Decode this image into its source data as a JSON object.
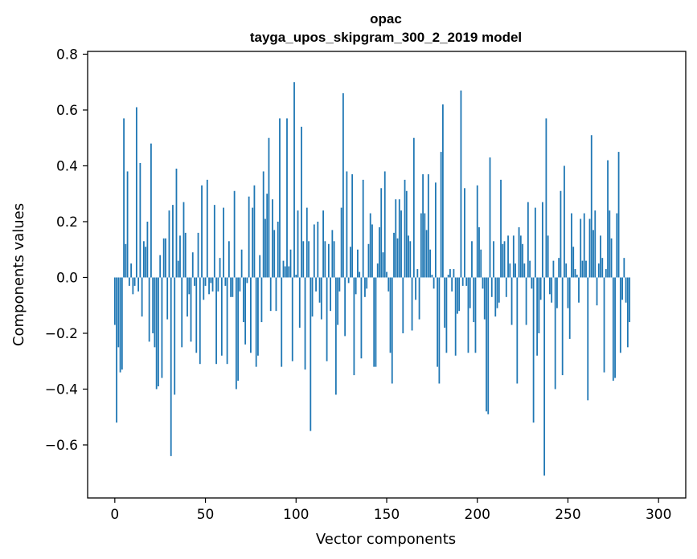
{
  "chart_data": {
    "type": "bar",
    "title": "opac",
    "subtitle": "tayga_upos_skipgram_300_2_2019 model",
    "xlabel": "Vector components",
    "ylabel": "Components values",
    "xlim": [
      -15,
      315
    ],
    "ylim": [
      -0.79,
      0.81
    ],
    "xticks": [
      0,
      50,
      100,
      150,
      200,
      250,
      300
    ],
    "yticks": [
      -0.6,
      -0.4,
      -0.2,
      0.0,
      0.2,
      0.4,
      0.6,
      0.8
    ],
    "xtick_labels": [
      "0",
      "50",
      "100",
      "150",
      "200",
      "250",
      "300"
    ],
    "ytick_labels": [
      "−0.6",
      "−0.4",
      "−0.2",
      "0.0",
      "0.2",
      "0.4",
      "0.6",
      "0.8"
    ],
    "color": "#1f77b4",
    "values": [
      -0.17,
      -0.52,
      -0.25,
      -0.34,
      -0.33,
      0.57,
      0.12,
      0.38,
      -0.03,
      0.05,
      -0.06,
      -0.03,
      0.61,
      -0.05,
      0.41,
      -0.14,
      0.13,
      0.11,
      0.2,
      -0.23,
      0.48,
      -0.2,
      -0.25,
      -0.4,
      -0.39,
      0.08,
      -0.36,
      0.14,
      0.14,
      -0.15,
      0.24,
      -0.64,
      0.26,
      -0.42,
      0.39,
      0.06,
      0.15,
      -0.25,
      0.27,
      0.16,
      -0.14,
      -0.06,
      -0.23,
      0.09,
      -0.03,
      -0.27,
      0.16,
      -0.31,
      0.33,
      -0.08,
      -0.03,
      0.35,
      -0.06,
      -0.02,
      -0.05,
      0.26,
      -0.31,
      -0.05,
      0.07,
      -0.28,
      0.25,
      -0.03,
      -0.31,
      0.13,
      -0.07,
      -0.07,
      0.31,
      -0.4,
      -0.37,
      -0.05,
      0.1,
      -0.16,
      -0.24,
      -0.02,
      0.29,
      -0.27,
      0.25,
      0.33,
      -0.32,
      -0.28,
      0.08,
      -0.16,
      0.38,
      0.21,
      0.3,
      0.5,
      -0.12,
      0.28,
      0.17,
      -0.12,
      0.2,
      0.57,
      -0.32,
      0.06,
      0.04,
      0.57,
      0.04,
      0.1,
      -0.3,
      0.7,
      0.01,
      0.24,
      -0.18,
      0.54,
      0.13,
      -0.33,
      0.25,
      0.13,
      -0.55,
      -0.14,
      0.19,
      -0.05,
      0.2,
      -0.09,
      -0.15,
      0.24,
      0.13,
      -0.3,
      0.12,
      -0.12,
      0.17,
      0.13,
      -0.42,
      -0.17,
      -0.05,
      0.25,
      0.66,
      -0.21,
      0.38,
      -0.02,
      0.11,
      0.37,
      -0.35,
      -0.06,
      0.1,
      0.02,
      -0.29,
      0.35,
      -0.07,
      -0.04,
      0.12,
      0.23,
      0.19,
      -0.32,
      -0.32,
      0.05,
      0.18,
      0.32,
      0.09,
      0.38,
      0.02,
      -0.05,
      -0.27,
      -0.38,
      0.16,
      0.28,
      0.14,
      0.28,
      0.24,
      -0.2,
      0.35,
      0.31,
      0.15,
      0.13,
      -0.19,
      0.5,
      -0.08,
      0.03,
      -0.15,
      0.23,
      0.37,
      0.23,
      0.17,
      0.37,
      0.1,
      0.01,
      -0.04,
      0.34,
      -0.32,
      -0.38,
      0.45,
      0.62,
      -0.18,
      -0.27,
      0.01,
      0.03,
      -0.05,
      0.03,
      -0.28,
      -0.13,
      -0.12,
      0.67,
      -0.03,
      0.32,
      -0.03,
      -0.27,
      -0.11,
      0.13,
      -0.16,
      -0.27,
      0.33,
      0.18,
      0.1,
      -0.04,
      -0.15,
      -0.48,
      -0.49,
      0.43,
      -0.07,
      0.13,
      -0.14,
      -0.11,
      -0.09,
      0.35,
      0.12,
      0.13,
      -0.07,
      0.15,
      0.05,
      -0.17,
      0.15,
      0.05,
      -0.38,
      0.18,
      0.15,
      0.12,
      0.05,
      -0.17,
      0.27,
      0.06,
      -0.04,
      -0.52,
      0.25,
      -0.28,
      -0.2,
      -0.08,
      0.27,
      -0.71,
      0.57,
      0.15,
      -0.06,
      -0.09,
      0.06,
      -0.4,
      -0.11,
      0.07,
      0.31,
      -0.35,
      0.4,
      0.05,
      -0.11,
      -0.22,
      0.23,
      0.11,
      0.03,
      0.01,
      -0.09,
      0.21,
      0.06,
      0.23,
      0.06,
      -0.44,
      0.21,
      0.51,
      0.17,
      0.24,
      -0.1,
      0.05,
      0.15,
      0.07,
      -0.34,
      0.03,
      0.42,
      0.24,
      0.14,
      -0.37,
      -0.36,
      0.23,
      0.45,
      -0.27,
      -0.08,
      0.07,
      -0.09,
      -0.25,
      -0.16
    ]
  }
}
